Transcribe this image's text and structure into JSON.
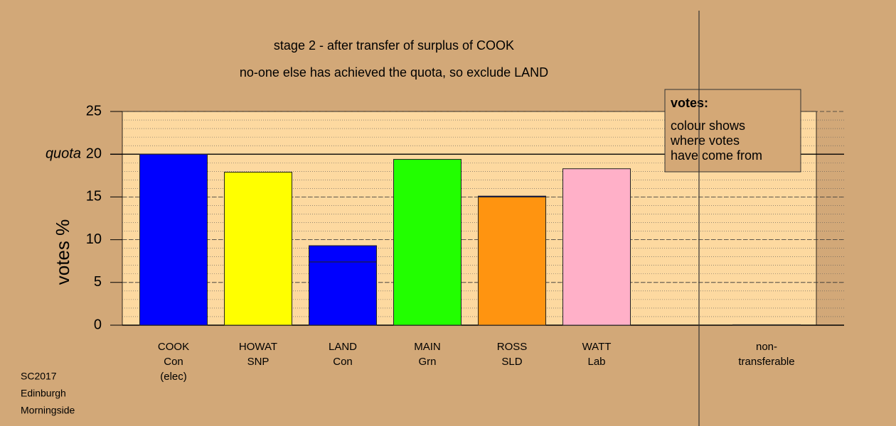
{
  "chart_data": {
    "type": "bar",
    "title": "stage 2 - after transfer of surplus of COOK",
    "subtitle": "no-one else has achieved the quota, so exclude LAND",
    "ylabel": "votes %",
    "categories": [
      [
        "COOK",
        "Con",
        "(elec)"
      ],
      [
        "HOWAT",
        "SNP"
      ],
      [
        "LAND",
        "Con"
      ],
      [
        "MAIN",
        "Grn"
      ],
      [
        "ROSS",
        "SLD"
      ],
      [
        "WATT",
        "Lab"
      ],
      [
        "non-",
        "transferable"
      ]
    ],
    "series": [
      {
        "colors": [
          "#0000ff",
          "#ffff00",
          "#0000ff",
          "#22ff00",
          "#ff9410",
          "#ffb0c8",
          "#0000ff"
        ],
        "values": [
          20,
          17.9,
          7.4,
          19.4,
          15.0,
          18.3,
          null
        ]
      },
      {
        "color": "#0000ff",
        "values": [
          0,
          0,
          1.9,
          0,
          0.1,
          0,
          0.05
        ]
      }
    ],
    "ylim": [
      0,
      25
    ],
    "yticks": [
      0,
      5,
      10,
      15,
      20,
      25
    ],
    "minor_grid_step": 1,
    "quota": 20,
    "quota_label": "quota",
    "legend": {
      "title": "votes:",
      "lines": [
        "colour shows",
        "where votes",
        "have come from"
      ]
    },
    "footnote": [
      "SC2017",
      "Edinburgh",
      "Morningside"
    ]
  }
}
